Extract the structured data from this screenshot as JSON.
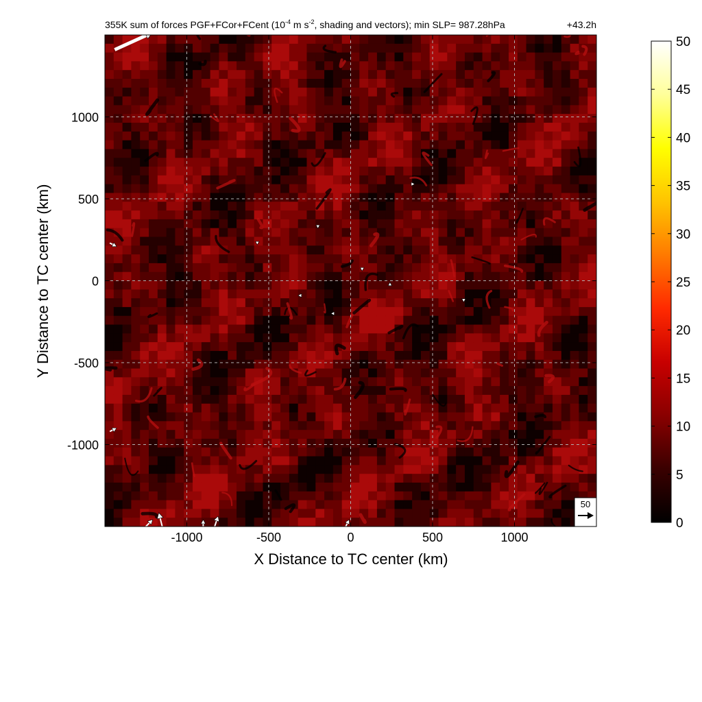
{
  "chart_data": {
    "type": "heatmap",
    "title": "355K sum of forces PGF+FCor+FCent (10",
    "title_exp": "-4",
    "title_mid": " m s",
    "title_exp2": "-2",
    "title_end": ", shading and vectors); min SLP= 987.28hPa",
    "time_label": "+43.2h",
    "xlabel": "X Distance to TC center (km)",
    "ylabel": "Y Distance to TC center (km)",
    "xlim": [
      -1500,
      1500
    ],
    "ylim": [
      -1500,
      1500
    ],
    "xticks": [
      -1000,
      -500,
      0,
      500,
      1000
    ],
    "xtick_labels": [
      "-1000",
      "-500",
      "0",
      "500",
      "1000"
    ],
    "yticks": [
      -1000,
      -500,
      0,
      500,
      1000
    ],
    "ytick_labels": [
      "-1000",
      "-500",
      "0",
      "500",
      "1000"
    ],
    "grid": true,
    "colorbar": {
      "range": [
        0,
        50
      ],
      "ticks": [
        "0",
        "5",
        "10",
        "15",
        "20",
        "25",
        "30",
        "35",
        "40",
        "45",
        "50"
      ],
      "colors": [
        "#000000",
        "#3a0000",
        "#8a0000",
        "#c80000",
        "#ff2a00",
        "#ff7a00",
        "#ffc400",
        "#ffff00",
        "#ffff9a",
        "#ffffff"
      ]
    },
    "reference_vector": {
      "label": "50"
    },
    "vectors": [
      {
        "x": -1440,
        "y": 1410,
        "u": 11,
        "v": 5
      },
      {
        "x": -1150,
        "y": -1500,
        "u": -1,
        "v": 4
      },
      {
        "x": -830,
        "y": -1500,
        "u": 1,
        "v": 3
      },
      {
        "x": -900,
        "y": -1500,
        "u": 0,
        "v": 2
      },
      {
        "x": -1250,
        "y": -1500,
        "u": 2,
        "v": 2
      },
      {
        "x": -30,
        "y": -1500,
        "u": 1,
        "v": 2
      },
      {
        "x": -1470,
        "y": -920,
        "u": 2,
        "v": 1
      },
      {
        "x": -1470,
        "y": 230,
        "u": 2,
        "v": -1
      },
      {
        "x": -570,
        "y": 240,
        "u": 0,
        "v": -1
      },
      {
        "x": -200,
        "y": 340,
        "u": 0,
        "v": -1
      },
      {
        "x": 70,
        "y": 80,
        "u": 0,
        "v": -1
      },
      {
        "x": 240,
        "y": -30,
        "u": 0,
        "v": 1
      },
      {
        "x": 370,
        "y": 590,
        "u": 1,
        "v": 0
      },
      {
        "x": -300,
        "y": -90,
        "u": -1,
        "v": 0
      },
      {
        "x": -100,
        "y": -200,
        "u": -1,
        "v": 0
      },
      {
        "x": 690,
        "y": -110,
        "u": 0,
        "v": -1
      }
    ]
  }
}
